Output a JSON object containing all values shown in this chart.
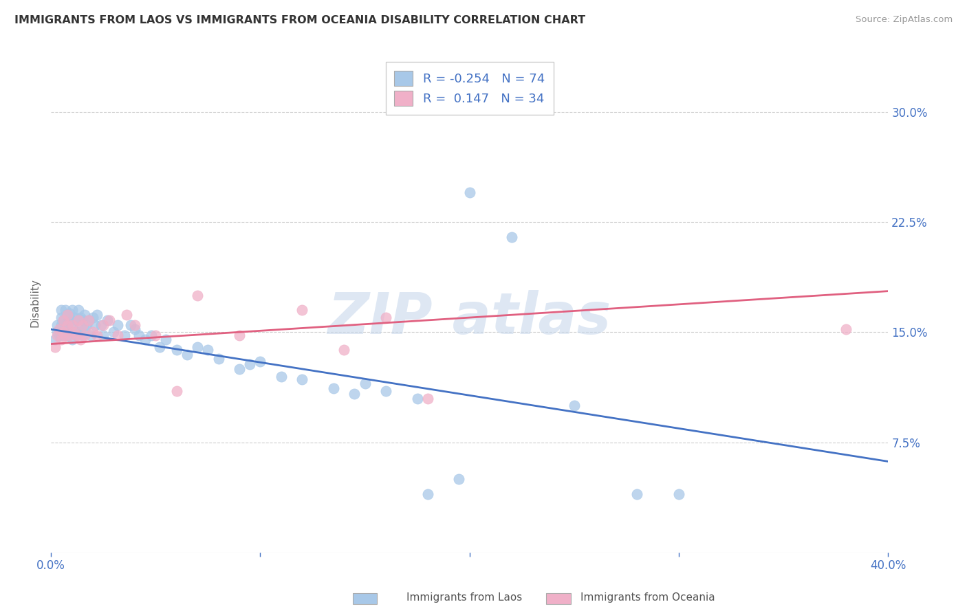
{
  "title": "IMMIGRANTS FROM LAOS VS IMMIGRANTS FROM OCEANIA DISABILITY CORRELATION CHART",
  "source": "Source: ZipAtlas.com",
  "ylabel": "Disability",
  "xlim": [
    0.0,
    0.4
  ],
  "ylim": [
    0.0,
    0.34
  ],
  "xticks": [
    0.0,
    0.1,
    0.2,
    0.3,
    0.4
  ],
  "xticklabels": [
    "0.0%",
    "",
    "",
    "",
    "40.0%"
  ],
  "yticks": [
    0.075,
    0.15,
    0.225,
    0.3
  ],
  "yticklabels": [
    "7.5%",
    "15.0%",
    "22.5%",
    "30.0%"
  ],
  "blue_color": "#a8c8e8",
  "pink_color": "#f0b0c8",
  "blue_line_color": "#4472c4",
  "pink_line_color": "#e06080",
  "blue_R": -0.254,
  "blue_N": 74,
  "pink_R": 0.147,
  "pink_N": 34,
  "legend_label_blue": "Immigrants from Laos",
  "legend_label_pink": "Immigrants from Oceania",
  "blue_scatter_x": [
    0.002,
    0.003,
    0.003,
    0.004,
    0.005,
    0.005,
    0.005,
    0.006,
    0.006,
    0.007,
    0.007,
    0.007,
    0.008,
    0.008,
    0.008,
    0.009,
    0.009,
    0.009,
    0.01,
    0.01,
    0.01,
    0.011,
    0.011,
    0.012,
    0.012,
    0.013,
    0.013,
    0.014,
    0.014,
    0.015,
    0.015,
    0.016,
    0.016,
    0.017,
    0.018,
    0.019,
    0.02,
    0.021,
    0.022,
    0.024,
    0.025,
    0.027,
    0.03,
    0.032,
    0.035,
    0.038,
    0.04,
    0.042,
    0.045,
    0.048,
    0.052,
    0.055,
    0.06,
    0.065,
    0.07,
    0.075,
    0.08,
    0.09,
    0.095,
    0.1,
    0.11,
    0.12,
    0.135,
    0.145,
    0.15,
    0.16,
    0.175,
    0.2,
    0.22,
    0.25,
    0.28,
    0.3,
    0.18,
    0.195
  ],
  "blue_scatter_y": [
    0.145,
    0.155,
    0.15,
    0.148,
    0.155,
    0.16,
    0.165,
    0.148,
    0.158,
    0.15,
    0.155,
    0.165,
    0.148,
    0.155,
    0.162,
    0.15,
    0.158,
    0.163,
    0.145,
    0.155,
    0.165,
    0.15,
    0.16,
    0.148,
    0.158,
    0.15,
    0.165,
    0.155,
    0.16,
    0.148,
    0.158,
    0.152,
    0.162,
    0.155,
    0.158,
    0.148,
    0.16,
    0.155,
    0.162,
    0.155,
    0.148,
    0.158,
    0.15,
    0.155,
    0.148,
    0.155,
    0.152,
    0.148,
    0.145,
    0.148,
    0.14,
    0.145,
    0.138,
    0.135,
    0.14,
    0.138,
    0.132,
    0.125,
    0.128,
    0.13,
    0.12,
    0.118,
    0.112,
    0.108,
    0.115,
    0.11,
    0.105,
    0.245,
    0.215,
    0.1,
    0.04,
    0.04,
    0.04,
    0.05
  ],
  "pink_scatter_x": [
    0.002,
    0.003,
    0.004,
    0.005,
    0.006,
    0.006,
    0.007,
    0.008,
    0.008,
    0.009,
    0.01,
    0.011,
    0.012,
    0.013,
    0.014,
    0.015,
    0.016,
    0.018,
    0.02,
    0.022,
    0.025,
    0.028,
    0.032,
    0.036,
    0.04,
    0.05,
    0.06,
    0.07,
    0.09,
    0.12,
    0.14,
    0.16,
    0.18,
    0.38
  ],
  "pink_scatter_y": [
    0.14,
    0.148,
    0.152,
    0.145,
    0.15,
    0.158,
    0.148,
    0.155,
    0.162,
    0.148,
    0.155,
    0.15,
    0.148,
    0.158,
    0.145,
    0.155,
    0.148,
    0.158,
    0.15,
    0.148,
    0.155,
    0.158,
    0.148,
    0.162,
    0.155,
    0.148,
    0.11,
    0.175,
    0.148,
    0.165,
    0.138,
    0.16,
    0.105,
    0.152
  ],
  "grid_color": "#cccccc",
  "tick_color": "#4472c4",
  "background_color": "#ffffff",
  "blue_trend_x": [
    0.0,
    0.4
  ],
  "blue_trend_y": [
    0.152,
    0.062
  ],
  "pink_trend_x": [
    0.0,
    0.4
  ],
  "pink_trend_y": [
    0.142,
    0.178
  ]
}
